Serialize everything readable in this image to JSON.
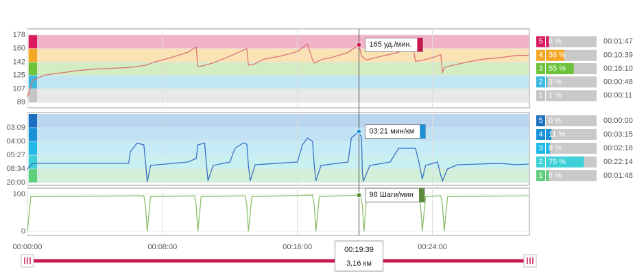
{
  "time_axis": {
    "xlim": [
      0,
      29.75
    ],
    "xticks": [
      {
        "value": 0,
        "label": "00:00:00"
      },
      {
        "value": 8,
        "label": "00:08:00"
      },
      {
        "value": 16,
        "label": "00:16:00"
      },
      {
        "value": 24,
        "label": "00:24:00"
      }
    ]
  },
  "cursor": {
    "x": 19.65,
    "time": "00:19:39",
    "distance": "3,16 км"
  },
  "chart_data": [
    {
      "type": "line",
      "color": "#d9736f",
      "ylim": [
        82,
        186
      ],
      "yticks": [
        89,
        107,
        125,
        142,
        160,
        178
      ],
      "cursor_value": 165,
      "cursor_label": "165 уд./мин.",
      "cursor_color": "#c8194f",
      "x": [
        0,
        0.3,
        1,
        2,
        3,
        4,
        5,
        6,
        7,
        7.5,
        8.5,
        9.5,
        10,
        10.1,
        10.5,
        11,
        12,
        12.5,
        13,
        13.1,
        13.5,
        14,
        15,
        16,
        16.6,
        16.9,
        17,
        17.5,
        18,
        19,
        19.65,
        19.8,
        20.1,
        21,
        22,
        22.8,
        23,
        23.5,
        24,
        24.5,
        24.6,
        24.7,
        25,
        26,
        27,
        28,
        29,
        29.7
      ],
      "values": [
        96,
        118,
        125,
        128,
        131,
        133,
        134,
        135,
        138,
        142,
        148,
        155,
        162,
        136,
        138,
        141,
        150,
        155,
        160,
        138,
        140,
        146,
        150,
        156,
        166,
        145,
        141,
        146,
        148,
        155,
        165,
        150,
        145,
        150,
        155,
        168,
        143,
        145,
        148,
        152,
        128,
        135,
        137,
        142,
        146,
        148,
        151,
        151
      ],
      "zones": [
        {
          "name": "5",
          "range": [
            160,
            178
          ],
          "color": "#d81b60",
          "band": "#f1b3c8",
          "percent": 6,
          "percent_label": "6 %",
          "time": "00:01:47"
        },
        {
          "name": "4",
          "range": [
            142,
            160
          ],
          "color": "#f5a623",
          "band": "#fbe2b4",
          "percent": 36,
          "percent_label": "36 %",
          "time": "00:10:39"
        },
        {
          "name": "3",
          "range": [
            125,
            142
          ],
          "color": "#6cc23a",
          "band": "#d4ecc2",
          "percent": 55,
          "percent_label": "55 %",
          "time": "00:16:10"
        },
        {
          "name": "2",
          "range": [
            107,
            125
          ],
          "color": "#3cb8e0",
          "band": "#c2e6f4",
          "percent": 3,
          "percent_label": "3 %",
          "time": "00:00:48"
        },
        {
          "name": "1",
          "range": [
            89,
            107
          ],
          "color": "#c4c4c4",
          "band": "#e8e8e8",
          "percent": 1,
          "percent_label": "1 %",
          "time": "00:00:11"
        }
      ]
    },
    {
      "type": "line",
      "color": "#3a6fc4",
      "ylim": [
        2.2,
        23.4
      ],
      "yticks": [
        {
          "value": 19,
          "label": "03:09"
        },
        {
          "value": 15,
          "label": "04:00"
        },
        {
          "value": 11,
          "label": "05:27"
        },
        {
          "value": 7,
          "label": "08:34"
        },
        {
          "value": 3,
          "label": "20:00"
        }
      ],
      "cursor_value": 17.9,
      "cursor_label": "03:21 мин/км",
      "cursor_color": "#1a90d8",
      "x": [
        0,
        0.3,
        6,
        6.1,
        6.5,
        6.9,
        7.0,
        7.1,
        7.3,
        9.5,
        10,
        10.1,
        10.5,
        10.6,
        10.7,
        11,
        12,
        12.3,
        12.8,
        13,
        13.1,
        13.2,
        13.5,
        16,
        16.3,
        16.6,
        16.9,
        17,
        17.1,
        17.4,
        19,
        19.2,
        19.65,
        19.8,
        19.85,
        19.9,
        20.3,
        21.5,
        22,
        23,
        23.2,
        23.4,
        23.6,
        24.3,
        24.5,
        24.6,
        24.9,
        25.5,
        28,
        29,
        29.7
      ],
      "values": [
        7,
        8.6,
        8.6,
        12,
        14.5,
        14,
        9,
        3.2,
        8,
        9,
        10,
        14,
        14.5,
        9,
        3.5,
        8,
        9,
        13,
        14.6,
        14.2,
        8,
        3.5,
        8.2,
        9,
        14,
        16,
        15,
        8,
        3.5,
        8,
        9,
        16,
        17.9,
        16,
        6,
        3.3,
        8,
        9,
        13,
        13,
        9,
        4,
        8,
        9,
        5,
        3.5,
        7,
        8.2,
        8.6,
        8.2,
        8.4
      ],
      "zones": [
        {
          "name": "5",
          "range": [
            19,
            23
          ],
          "color": "#1a6fc0",
          "band": "#b9d5f0",
          "percent": 0,
          "percent_label": "0 %",
          "time": "00:00:00"
        },
        {
          "name": "4",
          "range": [
            15,
            19
          ],
          "color": "#1a90d8",
          "band": "#c2e3f6",
          "percent": 11,
          "percent_label": "11 %",
          "time": "00:03:15"
        },
        {
          "name": "3",
          "range": [
            11,
            15
          ],
          "color": "#22b8e8",
          "band": "#c6ecf8",
          "percent": 8,
          "percent_label": "8 %",
          "time": "00:02:18"
        },
        {
          "name": "2",
          "range": [
            7,
            11
          ],
          "color": "#3fd0d8",
          "band": "#c9f0f0",
          "percent": 75,
          "percent_label": "75 %",
          "time": "00:22:14"
        },
        {
          "name": "1",
          "range": [
            3,
            7
          ],
          "color": "#5ecf7c",
          "band": "#d2f0d9",
          "percent": 6,
          "percent_label": "6 %",
          "time": "00:01:48"
        }
      ]
    },
    {
      "type": "line",
      "color": "#8cbf6a",
      "ylim": [
        -11,
        117
      ],
      "yticks": [
        0,
        100
      ],
      "cursor_value": 98,
      "cursor_label": "98 Шаги/мин",
      "cursor_color": "#5a8a3a",
      "x": [
        0,
        0.2,
        6.9,
        7.0,
        7.1,
        7.3,
        9.9,
        10.0,
        10.1,
        10.3,
        12.9,
        13.0,
        13.1,
        13.3,
        16.9,
        17.0,
        17.1,
        17.3,
        19.75,
        19.85,
        19.95,
        20.1,
        23.2,
        23.3,
        23.4,
        23.6,
        24.5,
        24.6,
        24.7,
        24.9,
        29.7
      ],
      "values": [
        0,
        94,
        96,
        70,
        0,
        94,
        96,
        70,
        0,
        94,
        96,
        70,
        0,
        94,
        98,
        70,
        0,
        94,
        98,
        70,
        0,
        94,
        97,
        70,
        0,
        94,
        96,
        70,
        0,
        94,
        96
      ]
    }
  ]
}
